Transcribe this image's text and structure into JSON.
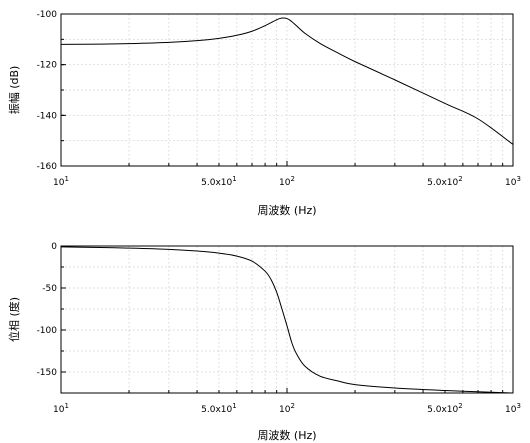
{
  "chart_data": [
    {
      "type": "line",
      "title": "",
      "xlabel": "周波数 (Hz)",
      "ylabel": "振幅 (dB)",
      "xscale": "log",
      "xlim": [
        10,
        1000
      ],
      "ylim": [
        -160,
        -100
      ],
      "grid": true,
      "xticks": [
        {
          "value": 10,
          "base": "10",
          "exp": "1"
        },
        {
          "value": 50,
          "base": "5.0x10",
          "exp": "1"
        },
        {
          "value": 100,
          "base": "10",
          "exp": "2"
        },
        {
          "value": 500,
          "base": "5.0x10",
          "exp": "2"
        },
        {
          "value": 1000,
          "base": "10",
          "exp": "3"
        }
      ],
      "yticks": [
        {
          "value": -100,
          "label": "-100"
        },
        {
          "value": -120,
          "label": "-120"
        },
        {
          "value": -140,
          "label": "-140"
        },
        {
          "value": -160,
          "label": "-160"
        }
      ],
      "series": [
        {
          "x": [
            10,
            15,
            20,
            30,
            40,
            50,
            60,
            70,
            80,
            90,
            95,
            100,
            105,
            110,
            120,
            140,
            170,
            200,
            300,
            500,
            700,
            1000
          ],
          "y": [
            -112,
            -111.9,
            -111.7,
            -111.2,
            -110.5,
            -109.6,
            -108.4,
            -106.8,
            -104.6,
            -102.3,
            -101.6,
            -101.8,
            -103.0,
            -104.6,
            -107.6,
            -111.6,
            -115.6,
            -118.8,
            -126.0,
            -135.3,
            -141.4,
            -151.5
          ]
        }
      ]
    },
    {
      "type": "line",
      "title": "",
      "xlabel": "周波数 (Hz)",
      "ylabel": "位相 (度)",
      "xscale": "log",
      "xlim": [
        10,
        1000
      ],
      "ylim": [
        -175,
        0
      ],
      "grid": true,
      "xticks": [
        {
          "value": 10,
          "base": "10",
          "exp": "1"
        },
        {
          "value": 50,
          "base": "5.0x10",
          "exp": "1"
        },
        {
          "value": 100,
          "base": "10",
          "exp": "2"
        },
        {
          "value": 500,
          "base": "5.0x10",
          "exp": "2"
        },
        {
          "value": 1000,
          "base": "10",
          "exp": "3"
        }
      ],
      "yticks": [
        {
          "value": 0,
          "label": "0"
        },
        {
          "value": -50,
          "label": "-50"
        },
        {
          "value": -100,
          "label": "-100"
        },
        {
          "value": -150,
          "label": "-150"
        }
      ],
      "series": [
        {
          "x": [
            10,
            15,
            20,
            30,
            40,
            50,
            60,
            70,
            80,
            85,
            90,
            95,
            100,
            105,
            110,
            120,
            140,
            170,
            200,
            300,
            500,
            700,
            1000
          ],
          "y": [
            -1,
            -1.8,
            -2.5,
            -4,
            -6,
            -8.5,
            -12,
            -18,
            -30,
            -40,
            -55,
            -75,
            -95,
            -115,
            -128,
            -143,
            -155,
            -161,
            -165,
            -169,
            -172,
            -173.5,
            -175
          ]
        }
      ]
    }
  ]
}
